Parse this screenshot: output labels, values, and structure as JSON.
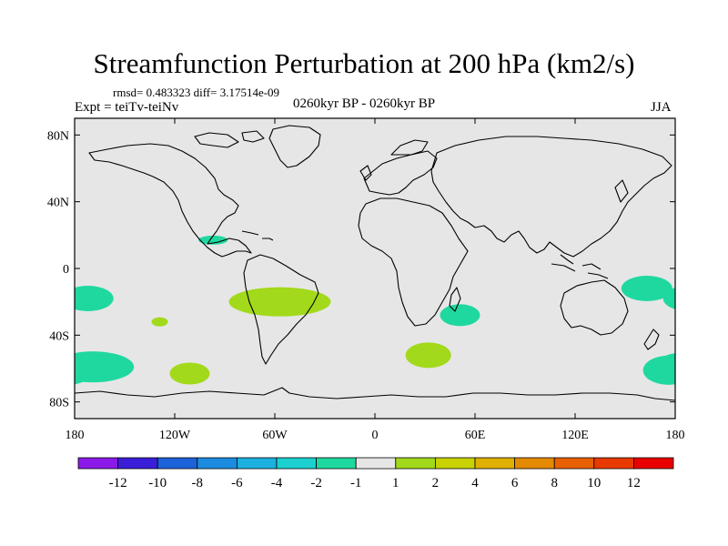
{
  "title": "Streamfunction Perturbation at 200 hPa (km2/s)",
  "stats": "rmsd= 0.483323 diff= 3.17514e-09",
  "experiment": "Expt = teiTv-teiNv",
  "period": "0260kyr BP - 0260kyr BP",
  "season": "JJA",
  "map": {
    "lon_ticks": [
      "180",
      "120W",
      "60W",
      "0",
      "60E",
      "120E",
      "180"
    ],
    "lat_ticks": [
      "80N",
      "40N",
      "0",
      "40S",
      "80S"
    ],
    "background_color": "#e6e6e6",
    "coastline_color": "#000000"
  },
  "anomalies": [
    {
      "name": "north-pacific-west",
      "lon": -172,
      "lat": -18,
      "value": -1.5,
      "color": "#1fd8a0"
    },
    {
      "name": "central-america",
      "lon": -97,
      "lat": 17,
      "value": -1.5,
      "color": "#1fd8a0"
    },
    {
      "name": "south-america-tropics",
      "lon": -57,
      "lat": -20,
      "value": 1.5,
      "color": "#a2d91a"
    },
    {
      "name": "south-pacific-small",
      "lon": -129,
      "lat": -32,
      "value": 1.5,
      "color": "#a2d91a"
    },
    {
      "name": "south-pacific-west",
      "lon": -169,
      "lat": -59,
      "value": -1.5,
      "color": "#1fd8a0"
    },
    {
      "name": "south-pacific-east",
      "lon": -111,
      "lat": -63,
      "value": 1.5,
      "color": "#a2d91a"
    },
    {
      "name": "madagascar-east",
      "lon": 51,
      "lat": -28,
      "value": -1.5,
      "color": "#1fd8a0"
    },
    {
      "name": "south-atlantic-africa",
      "lon": 32,
      "lat": -52,
      "value": 1.5,
      "color": "#a2d91a"
    },
    {
      "name": "australia-east",
      "lon": 163,
      "lat": -12,
      "value": -1.5,
      "color": "#1fd8a0"
    },
    {
      "name": "south-pacific-far-east",
      "lon": 176,
      "lat": -61,
      "value": -1.5,
      "color": "#1fd8a0"
    }
  ],
  "colorbar": {
    "colors": [
      "#8b1ae8",
      "#3a1ed8",
      "#1c62d8",
      "#1c8be0",
      "#1cb0e0",
      "#1cd0d0",
      "#1fd8a0",
      "#e6e6e6",
      "#a2d91a",
      "#c8d200",
      "#e0b000",
      "#e48a00",
      "#e86000",
      "#e83a00",
      "#e80000"
    ],
    "labels": [
      "-12",
      "-10",
      "-8",
      "-6",
      "-4",
      "-2",
      "-1",
      "1",
      "2",
      "4",
      "6",
      "8",
      "10",
      "12"
    ]
  }
}
